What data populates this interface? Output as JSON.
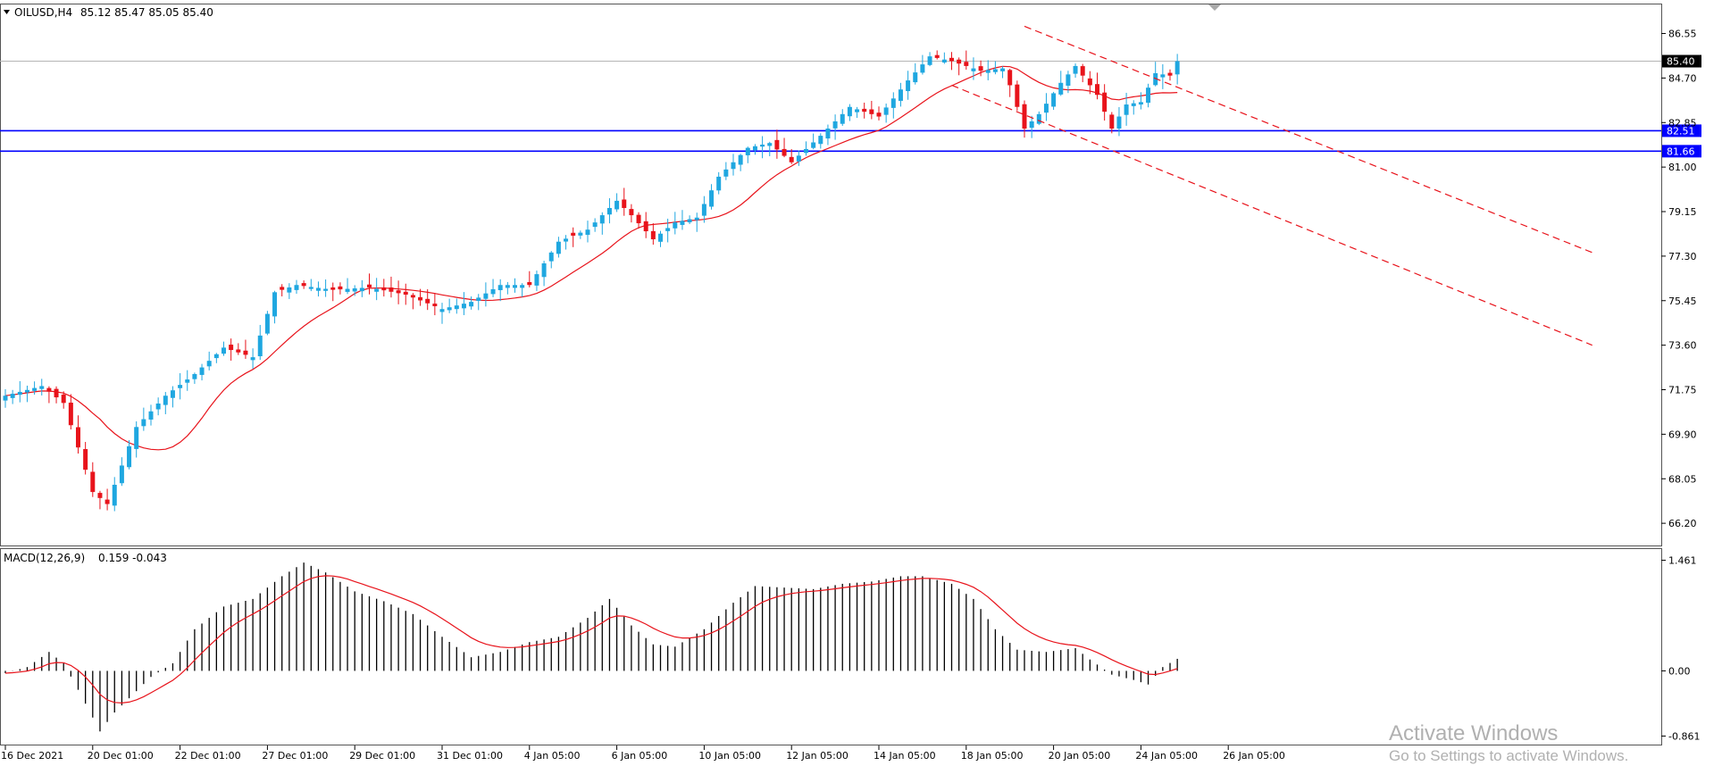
{
  "chart_data": [
    {
      "type": "candlestick",
      "panel": "price",
      "header": {
        "symbol": "OILUSD,H4",
        "ohlc": "85.12 85.47 85.05 85.40"
      },
      "ylim": [
        65.5,
        87.2
      ],
      "y_ticks": [
        "86.55",
        "84.70",
        "82.85",
        "81.00",
        "79.15",
        "77.30",
        "75.45",
        "73.60",
        "71.75",
        "69.90",
        "68.05",
        "66.20"
      ],
      "x_ticks": [
        "16 Dec 2021",
        "20 Dec 01:00",
        "22 Dec 01:00",
        "27 Dec 01:00",
        "29 Dec 01:00",
        "31 Dec 01:00",
        "4 Jan 05:00",
        "6 Jan 05:00",
        "10 Jan 05:00",
        "12 Jan 05:00",
        "14 Jan 05:00",
        "18 Jan 05:00",
        "20 Jan 05:00",
        "24 Jan 05:00",
        "26 Jan 05:00"
      ],
      "current_price": {
        "value": 85.4,
        "label": "85.40"
      },
      "levels": [
        {
          "value": 82.51,
          "label": "82.51",
          "color": "#0000ff"
        },
        {
          "value": 81.66,
          "label": "81.66",
          "color": "#0000ff"
        }
      ],
      "channel_lines": [
        {
          "from": [
            140,
            86.85
          ],
          "to": [
            218,
            77.45
          ]
        },
        {
          "from": [
            130,
            84.4
          ],
          "to": [
            218,
            73.6
          ]
        }
      ],
      "bull_color": "#1fa7e0",
      "bear_color": "#e8131b",
      "ma_color": "#e8131b",
      "anchors": [
        [
          0,
          71.5
        ],
        [
          5,
          71.9
        ],
        [
          8,
          71.2
        ],
        [
          12,
          67.5
        ],
        [
          14,
          67.0
        ],
        [
          18,
          70.2
        ],
        [
          22,
          71.5
        ],
        [
          26,
          72.4
        ],
        [
          30,
          73.5
        ],
        [
          34,
          73.1
        ],
        [
          37,
          75.8
        ],
        [
          40,
          76.1
        ],
        [
          45,
          75.9
        ],
        [
          50,
          76.0
        ],
        [
          55,
          75.7
        ],
        [
          60,
          75.1
        ],
        [
          64,
          75.4
        ],
        [
          68,
          76.1
        ],
        [
          72,
          76.1
        ],
        [
          76,
          77.9
        ],
        [
          80,
          78.4
        ],
        [
          84,
          79.6
        ],
        [
          86,
          79.0
        ],
        [
          89,
          78.0
        ],
        [
          92,
          78.7
        ],
        [
          95,
          78.9
        ],
        [
          98,
          80.6
        ],
        [
          102,
          81.8
        ],
        [
          105,
          82.0
        ],
        [
          108,
          81.2
        ],
        [
          112,
          82.3
        ],
        [
          116,
          83.5
        ],
        [
          120,
          83.1
        ],
        [
          124,
          84.6
        ],
        [
          127,
          85.6
        ],
        [
          130,
          85.4
        ],
        [
          134,
          85.0
        ],
        [
          137,
          85.1
        ],
        [
          138,
          84.4
        ],
        [
          140,
          82.6
        ],
        [
          142,
          83.2
        ],
        [
          145,
          84.5
        ],
        [
          147,
          85.2
        ],
        [
          150,
          84.0
        ],
        [
          152,
          82.6
        ],
        [
          154,
          83.6
        ],
        [
          156,
          83.7
        ],
        [
          158,
          84.9
        ],
        [
          160,
          84.8
        ],
        [
          161,
          85.4
        ]
      ]
    },
    {
      "type": "bar",
      "panel": "indicator",
      "header": {
        "name": "MACD(12,26,9)",
        "values": "0.159 -0.043"
      },
      "ylim": [
        -0.95,
        1.55
      ],
      "y_ticks": [
        "1.461",
        "0.00",
        "-0.861"
      ],
      "bar_color": "#000000",
      "signal_color": "#e8131b",
      "anchors": [
        [
          0,
          -0.03
        ],
        [
          3,
          0.05
        ],
        [
          6,
          0.25
        ],
        [
          8,
          0.1
        ],
        [
          10,
          -0.25
        ],
        [
          13,
          -0.8
        ],
        [
          15,
          -0.55
        ],
        [
          20,
          -0.08
        ],
        [
          23,
          0.1
        ],
        [
          26,
          0.55
        ],
        [
          30,
          0.85
        ],
        [
          34,
          0.95
        ],
        [
          38,
          1.25
        ],
        [
          41,
          1.43
        ],
        [
          44,
          1.3
        ],
        [
          48,
          1.05
        ],
        [
          52,
          0.92
        ],
        [
          56,
          0.75
        ],
        [
          60,
          0.45
        ],
        [
          64,
          0.18
        ],
        [
          68,
          0.25
        ],
        [
          72,
          0.38
        ],
        [
          76,
          0.45
        ],
        [
          80,
          0.7
        ],
        [
          83,
          0.95
        ],
        [
          86,
          0.6
        ],
        [
          89,
          0.35
        ],
        [
          92,
          0.32
        ],
        [
          96,
          0.55
        ],
        [
          100,
          0.9
        ],
        [
          103,
          1.12
        ],
        [
          107,
          1.1
        ],
        [
          111,
          1.08
        ],
        [
          115,
          1.15
        ],
        [
          119,
          1.18
        ],
        [
          123,
          1.25
        ],
        [
          126,
          1.25
        ],
        [
          130,
          1.15
        ],
        [
          133,
          0.95
        ],
        [
          136,
          0.55
        ],
        [
          139,
          0.28
        ],
        [
          143,
          0.25
        ],
        [
          147,
          0.3
        ],
        [
          149,
          0.15
        ],
        [
          152,
          -0.05
        ],
        [
          155,
          -0.12
        ],
        [
          157,
          -0.18
        ],
        [
          159,
          0.05
        ],
        [
          161,
          0.159
        ]
      ]
    }
  ]
}
